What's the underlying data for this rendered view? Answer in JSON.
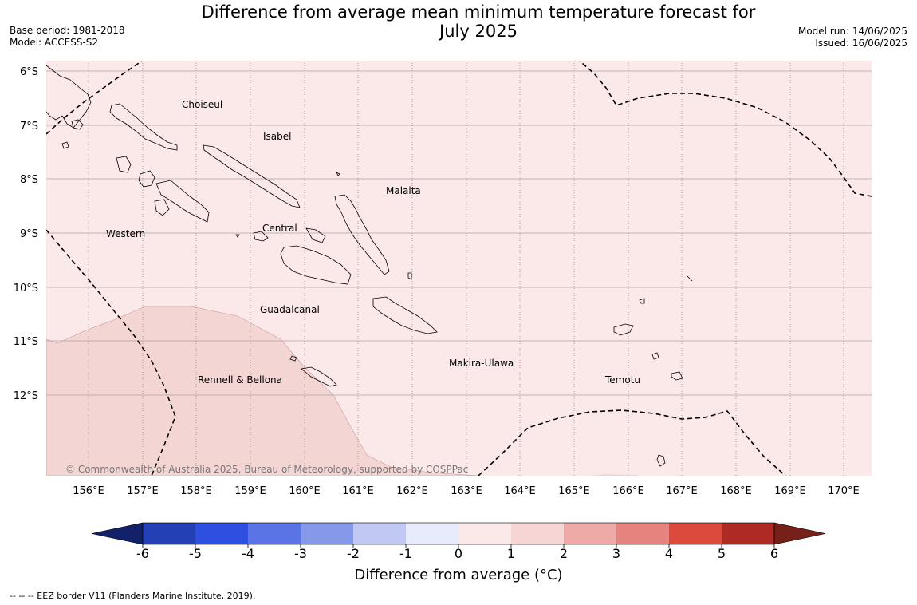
{
  "title": "Difference from average mean minimum temperature forecast for July 2025",
  "title_line1": "Difference from average mean minimum temperature forecast for",
  "title_line2": "July 2025",
  "base_period": "Base period: 1981-2018",
  "model": "Model: ACCESS-S2",
  "model_run": "Model run: 14/06/2025",
  "issued": "Issued: 16/06/2025",
  "copyright": "© Commonwealth of Australia 2025, Bureau of Meteorology, supported by COSPPac",
  "footer": "--  --  -- EEZ border V11 (Flanders Marine Institute, 2019).",
  "map": {
    "lat_labels": [
      "6°S",
      "7°S",
      "8°S",
      "9°S",
      "10°S",
      "11°S",
      "12°S"
    ],
    "lon_labels": [
      "156°E",
      "157°E",
      "158°E",
      "159°E",
      "160°E",
      "161°E",
      "162°E",
      "163°E",
      "164°E",
      "165°E",
      "166°E",
      "167°E",
      "168°E",
      "169°E",
      "170°E"
    ],
    "regions": [
      {
        "name": "Choiseul"
      },
      {
        "name": "Isabel"
      },
      {
        "name": "Malaita"
      },
      {
        "name": "Western"
      },
      {
        "name": "Central"
      },
      {
        "name": "Guadalcanal"
      },
      {
        "name": "Makira-Ulawa"
      },
      {
        "name": "Rennell & Bellona"
      },
      {
        "name": "Temotu"
      }
    ],
    "background_anomaly_class": "0 to 1",
    "southwest_anomaly_class": "1 to 2"
  },
  "colorbar": {
    "label": "Difference from average (°C)",
    "ticks": [
      "-6",
      "-5",
      "-4",
      "-3",
      "-2",
      "-1",
      "0",
      "1",
      "2",
      "3",
      "4",
      "5",
      "6"
    ],
    "colors": [
      "#13206a",
      "#2340b4",
      "#2f4fe0",
      "#5a74e6",
      "#8598ea",
      "#c0c8f3",
      "#e8ebfb",
      "#fbe9e9",
      "#f6d5d4",
      "#eeaaa6",
      "#e5847e",
      "#dc4a3e",
      "#ae2b25",
      "#762019"
    ]
  }
}
